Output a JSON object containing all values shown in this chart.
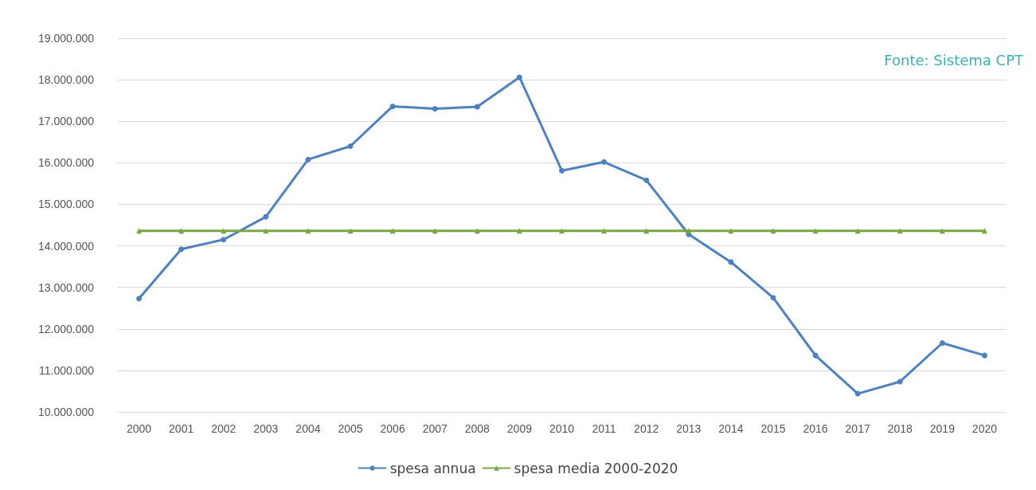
{
  "chart_data": {
    "type": "line",
    "categories": [
      "2000",
      "2001",
      "2002",
      "2003",
      "2004",
      "2005",
      "2006",
      "2007",
      "2008",
      "2009",
      "2010",
      "2011",
      "2012",
      "2013",
      "2014",
      "2015",
      "2016",
      "2017",
      "2018",
      "2019",
      "2020"
    ],
    "series": [
      {
        "name": "spesa annua",
        "color": "#4f81bd",
        "marker": "circle",
        "values": [
          12730000,
          13920000,
          14150000,
          14700000,
          16080000,
          16400000,
          17360000,
          17300000,
          17350000,
          18060000,
          15810000,
          16020000,
          15580000,
          14280000,
          13610000,
          12750000,
          11360000,
          10440000,
          10730000,
          11660000,
          11360000
        ]
      },
      {
        "name": "spesa media 2000-2020",
        "color": "#77a844",
        "marker": "triangle",
        "values": [
          14360000,
          14360000,
          14360000,
          14360000,
          14360000,
          14360000,
          14360000,
          14360000,
          14360000,
          14360000,
          14360000,
          14360000,
          14360000,
          14360000,
          14360000,
          14360000,
          14360000,
          14360000,
          14360000,
          14360000,
          14360000
        ]
      }
    ],
    "ylim": [
      10000000,
      19000000
    ],
    "yticks": [
      {
        "value": 10000000,
        "label": "10.000.000"
      },
      {
        "value": 11000000,
        "label": "11.000.000"
      },
      {
        "value": 12000000,
        "label": "12.000.000"
      },
      {
        "value": 13000000,
        "label": "13.000.000"
      },
      {
        "value": 14000000,
        "label": "14.000.000"
      },
      {
        "value": 15000000,
        "label": "15.000.000"
      },
      {
        "value": 16000000,
        "label": "16.000.000"
      },
      {
        "value": 17000000,
        "label": "17.000.000"
      },
      {
        "value": 18000000,
        "label": "18.000.000"
      },
      {
        "value": 19000000,
        "label": "19.000.000"
      }
    ],
    "grid": "y",
    "legend": "bottom",
    "line_style": "solid",
    "annotations": [
      "Fonte: Sistema CPT"
    ]
  }
}
